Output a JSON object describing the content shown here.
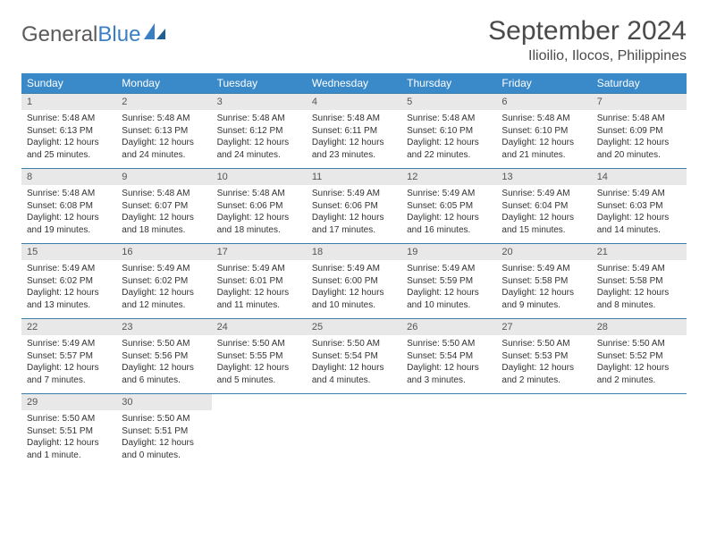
{
  "brand": {
    "name1": "General",
    "name2": "Blue"
  },
  "title": "September 2024",
  "location": "Ilioilio, Ilocos, Philippines",
  "colors": {
    "header_blue": "#3a89c9",
    "day_bg": "#e8e8e8",
    "rule": "#3a7fa8",
    "logo_gray": "#5a5a5a",
    "logo_blue": "#3a7fc4"
  },
  "day_names": [
    "Sunday",
    "Monday",
    "Tuesday",
    "Wednesday",
    "Thursday",
    "Friday",
    "Saturday"
  ],
  "weeks": [
    [
      {
        "n": "1",
        "sr": "Sunrise: 5:48 AM",
        "ss": "Sunset: 6:13 PM",
        "dl": "Daylight: 12 hours and 25 minutes."
      },
      {
        "n": "2",
        "sr": "Sunrise: 5:48 AM",
        "ss": "Sunset: 6:13 PM",
        "dl": "Daylight: 12 hours and 24 minutes."
      },
      {
        "n": "3",
        "sr": "Sunrise: 5:48 AM",
        "ss": "Sunset: 6:12 PM",
        "dl": "Daylight: 12 hours and 24 minutes."
      },
      {
        "n": "4",
        "sr": "Sunrise: 5:48 AM",
        "ss": "Sunset: 6:11 PM",
        "dl": "Daylight: 12 hours and 23 minutes."
      },
      {
        "n": "5",
        "sr": "Sunrise: 5:48 AM",
        "ss": "Sunset: 6:10 PM",
        "dl": "Daylight: 12 hours and 22 minutes."
      },
      {
        "n": "6",
        "sr": "Sunrise: 5:48 AM",
        "ss": "Sunset: 6:10 PM",
        "dl": "Daylight: 12 hours and 21 minutes."
      },
      {
        "n": "7",
        "sr": "Sunrise: 5:48 AM",
        "ss": "Sunset: 6:09 PM",
        "dl": "Daylight: 12 hours and 20 minutes."
      }
    ],
    [
      {
        "n": "8",
        "sr": "Sunrise: 5:48 AM",
        "ss": "Sunset: 6:08 PM",
        "dl": "Daylight: 12 hours and 19 minutes."
      },
      {
        "n": "9",
        "sr": "Sunrise: 5:48 AM",
        "ss": "Sunset: 6:07 PM",
        "dl": "Daylight: 12 hours and 18 minutes."
      },
      {
        "n": "10",
        "sr": "Sunrise: 5:48 AM",
        "ss": "Sunset: 6:06 PM",
        "dl": "Daylight: 12 hours and 18 minutes."
      },
      {
        "n": "11",
        "sr": "Sunrise: 5:49 AM",
        "ss": "Sunset: 6:06 PM",
        "dl": "Daylight: 12 hours and 17 minutes."
      },
      {
        "n": "12",
        "sr": "Sunrise: 5:49 AM",
        "ss": "Sunset: 6:05 PM",
        "dl": "Daylight: 12 hours and 16 minutes."
      },
      {
        "n": "13",
        "sr": "Sunrise: 5:49 AM",
        "ss": "Sunset: 6:04 PM",
        "dl": "Daylight: 12 hours and 15 minutes."
      },
      {
        "n": "14",
        "sr": "Sunrise: 5:49 AM",
        "ss": "Sunset: 6:03 PM",
        "dl": "Daylight: 12 hours and 14 minutes."
      }
    ],
    [
      {
        "n": "15",
        "sr": "Sunrise: 5:49 AM",
        "ss": "Sunset: 6:02 PM",
        "dl": "Daylight: 12 hours and 13 minutes."
      },
      {
        "n": "16",
        "sr": "Sunrise: 5:49 AM",
        "ss": "Sunset: 6:02 PM",
        "dl": "Daylight: 12 hours and 12 minutes."
      },
      {
        "n": "17",
        "sr": "Sunrise: 5:49 AM",
        "ss": "Sunset: 6:01 PM",
        "dl": "Daylight: 12 hours and 11 minutes."
      },
      {
        "n": "18",
        "sr": "Sunrise: 5:49 AM",
        "ss": "Sunset: 6:00 PM",
        "dl": "Daylight: 12 hours and 10 minutes."
      },
      {
        "n": "19",
        "sr": "Sunrise: 5:49 AM",
        "ss": "Sunset: 5:59 PM",
        "dl": "Daylight: 12 hours and 10 minutes."
      },
      {
        "n": "20",
        "sr": "Sunrise: 5:49 AM",
        "ss": "Sunset: 5:58 PM",
        "dl": "Daylight: 12 hours and 9 minutes."
      },
      {
        "n": "21",
        "sr": "Sunrise: 5:49 AM",
        "ss": "Sunset: 5:58 PM",
        "dl": "Daylight: 12 hours and 8 minutes."
      }
    ],
    [
      {
        "n": "22",
        "sr": "Sunrise: 5:49 AM",
        "ss": "Sunset: 5:57 PM",
        "dl": "Daylight: 12 hours and 7 minutes."
      },
      {
        "n": "23",
        "sr": "Sunrise: 5:50 AM",
        "ss": "Sunset: 5:56 PM",
        "dl": "Daylight: 12 hours and 6 minutes."
      },
      {
        "n": "24",
        "sr": "Sunrise: 5:50 AM",
        "ss": "Sunset: 5:55 PM",
        "dl": "Daylight: 12 hours and 5 minutes."
      },
      {
        "n": "25",
        "sr": "Sunrise: 5:50 AM",
        "ss": "Sunset: 5:54 PM",
        "dl": "Daylight: 12 hours and 4 minutes."
      },
      {
        "n": "26",
        "sr": "Sunrise: 5:50 AM",
        "ss": "Sunset: 5:54 PM",
        "dl": "Daylight: 12 hours and 3 minutes."
      },
      {
        "n": "27",
        "sr": "Sunrise: 5:50 AM",
        "ss": "Sunset: 5:53 PM",
        "dl": "Daylight: 12 hours and 2 minutes."
      },
      {
        "n": "28",
        "sr": "Sunrise: 5:50 AM",
        "ss": "Sunset: 5:52 PM",
        "dl": "Daylight: 12 hours and 2 minutes."
      }
    ],
    [
      {
        "n": "29",
        "sr": "Sunrise: 5:50 AM",
        "ss": "Sunset: 5:51 PM",
        "dl": "Daylight: 12 hours and 1 minute."
      },
      {
        "n": "30",
        "sr": "Sunrise: 5:50 AM",
        "ss": "Sunset: 5:51 PM",
        "dl": "Daylight: 12 hours and 0 minutes."
      },
      null,
      null,
      null,
      null,
      null
    ]
  ]
}
